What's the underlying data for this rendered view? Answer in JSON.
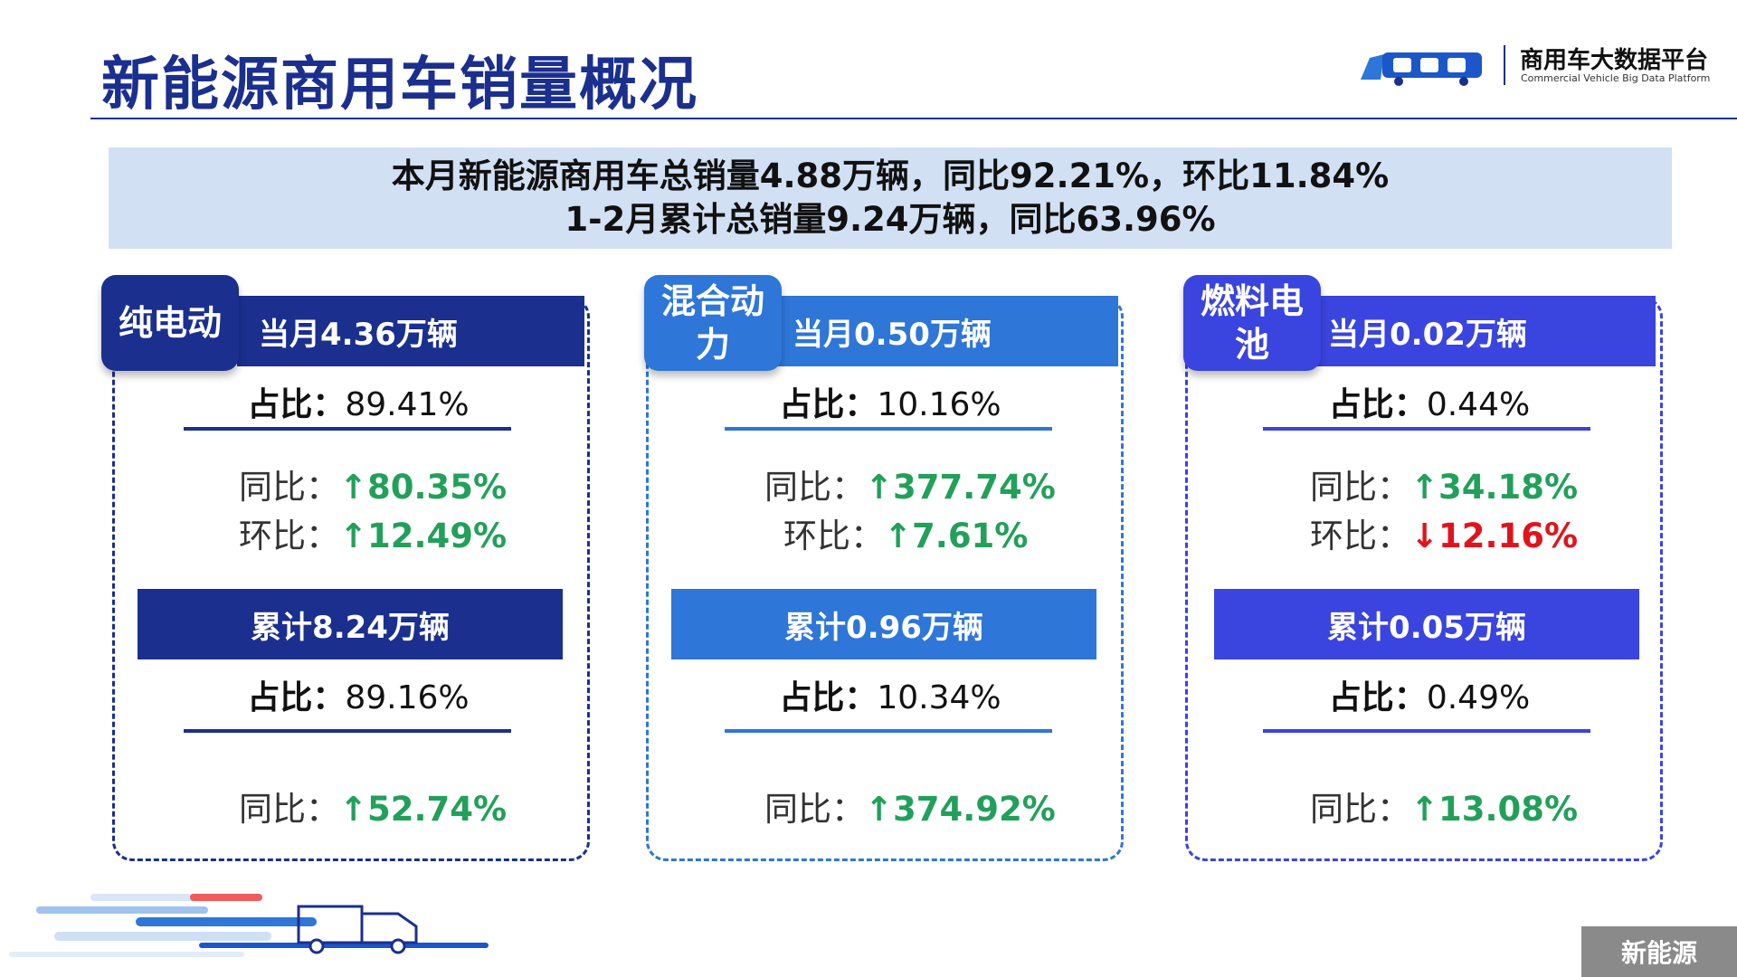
{
  "header": {
    "title": "新能源商用车销量概况",
    "logo_cn": "商用车大数据平台",
    "logo_en": "Commercial Vehicle Big Data Platform"
  },
  "summary": {
    "line1": "本月新能源商用车总销量4.88万辆，同比92.21%，环比11.84%",
    "line2": "1-2月累计总销量9.24万辆，同比63.96%"
  },
  "labels": {
    "share": "占比：",
    "yoy": "同比：",
    "mom": "环比："
  },
  "cards": [
    {
      "tag": "纯电动",
      "month": "当月4.36万辆",
      "month_share": "89.41%",
      "yoy_arrow": "↑",
      "yoy": "80.35%",
      "mom_arrow": "↑",
      "mom": "12.49%",
      "cum": "累计8.24万辆",
      "cum_share": "89.16%",
      "cum_yoy_arrow": "↑",
      "cum_yoy": "52.74%"
    },
    {
      "tag": "混合动力",
      "month": "当月0.50万辆",
      "month_share": "10.16%",
      "yoy_arrow": "↑",
      "yoy": "377.74%",
      "mom_arrow": "↑",
      "mom": "7.61%",
      "cum": "累计0.96万辆",
      "cum_share": "10.34%",
      "cum_yoy_arrow": "↑",
      "cum_yoy": "374.92%"
    },
    {
      "tag": "燃料电池",
      "month": "当月0.02万辆",
      "month_share": "0.44%",
      "yoy_arrow": "↑",
      "yoy": "34.18%",
      "mom_arrow": "↓",
      "mom": "12.16%",
      "cum": "累计0.05万辆",
      "cum_share": "0.49%",
      "cum_yoy_arrow": "↑",
      "cum_yoy": "13.08%"
    }
  ],
  "colors": {
    "card1": "#1b2f8f",
    "card2": "#2e76d8",
    "card3": "#3a44de",
    "up": "#22a05a",
    "down": "#e0141c"
  },
  "footer": {
    "section": "新能源"
  }
}
